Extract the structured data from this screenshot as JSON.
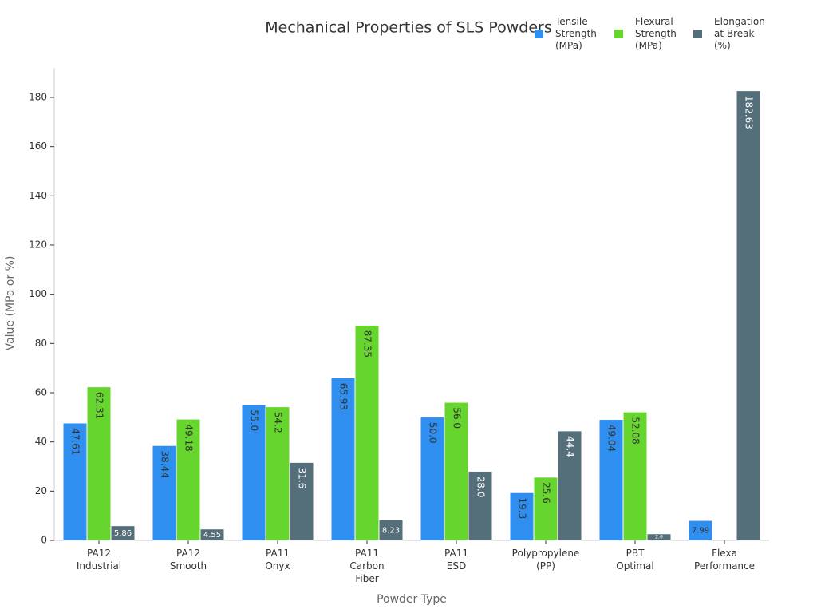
{
  "chart_data": {
    "type": "bar",
    "title": "Mechanical Properties of SLS Powders",
    "x_label": "Powder Type",
    "y_label": "Value (MPa or %)",
    "categories": [
      "PA12\nIndustrial",
      "PA12\nSmooth",
      "PA11\nOnyx",
      "PA11\nCarbon\nFiber",
      "PA11\nESD",
      "Polypropylene\n(PP)",
      "PBT\nOptimal",
      "Flexa\nPerformance"
    ],
    "series": [
      {
        "name": "Tensile\nStrength\n(MPa)",
        "color": "#2e8ff0",
        "label_color": "#333333",
        "values": [
          47.61,
          38.44,
          55.0,
          65.93,
          50.0,
          19.3,
          49.04,
          7.99
        ],
        "value_labels": [
          "47.61",
          "38.44",
          "55.0",
          "65.93",
          "50.0",
          "19.3",
          "49.04",
          "7.99"
        ]
      },
      {
        "name": "Flexural\nStrength\n(MPa)",
        "color": "#66d62e",
        "label_color": "#333333",
        "values": [
          62.31,
          49.18,
          54.2,
          87.35,
          56.0,
          25.6,
          52.08,
          null
        ],
        "value_labels": [
          "62.31",
          "49.18",
          "54.2",
          "87.35",
          "56.0",
          "25.6",
          "52.08",
          null
        ]
      },
      {
        "name": "Elongation\nat Break\n(%)",
        "color": "#546e7a",
        "label_color": "#ffffff",
        "values": [
          5.86,
          4.55,
          31.6,
          8.23,
          28.0,
          44.4,
          2.6,
          182.63
        ],
        "value_labels": [
          "5.86",
          "4.55",
          "31.6",
          "8.23",
          "28.0",
          "44.4",
          "2.6",
          "182.63"
        ]
      }
    ],
    "ylim": [
      0,
      192
    ],
    "yticks": [
      0,
      20,
      40,
      60,
      80,
      100,
      120,
      140,
      160,
      180
    ],
    "legend": "top-right",
    "grid": false
  }
}
